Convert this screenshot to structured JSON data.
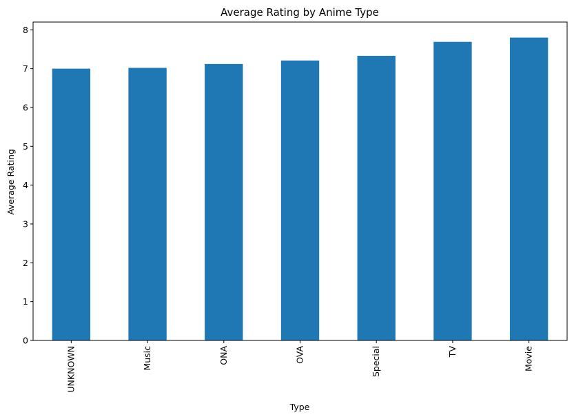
{
  "chart_data": {
    "type": "bar",
    "title": "Average Rating by Anime Type",
    "xlabel": "Type",
    "ylabel": "Average Rating",
    "categories": [
      "UNKNOWN",
      "Music",
      "ONA",
      "OVA",
      "Special",
      "TV",
      "Movie"
    ],
    "values": [
      7.0,
      7.02,
      7.12,
      7.21,
      7.33,
      7.69,
      7.8
    ],
    "ylim": [
      0,
      8.2
    ],
    "yticks": [
      "0",
      "1",
      "2",
      "3",
      "4",
      "5",
      "6",
      "7",
      "8"
    ],
    "grid": false,
    "bar_color": "#1f77b4"
  }
}
